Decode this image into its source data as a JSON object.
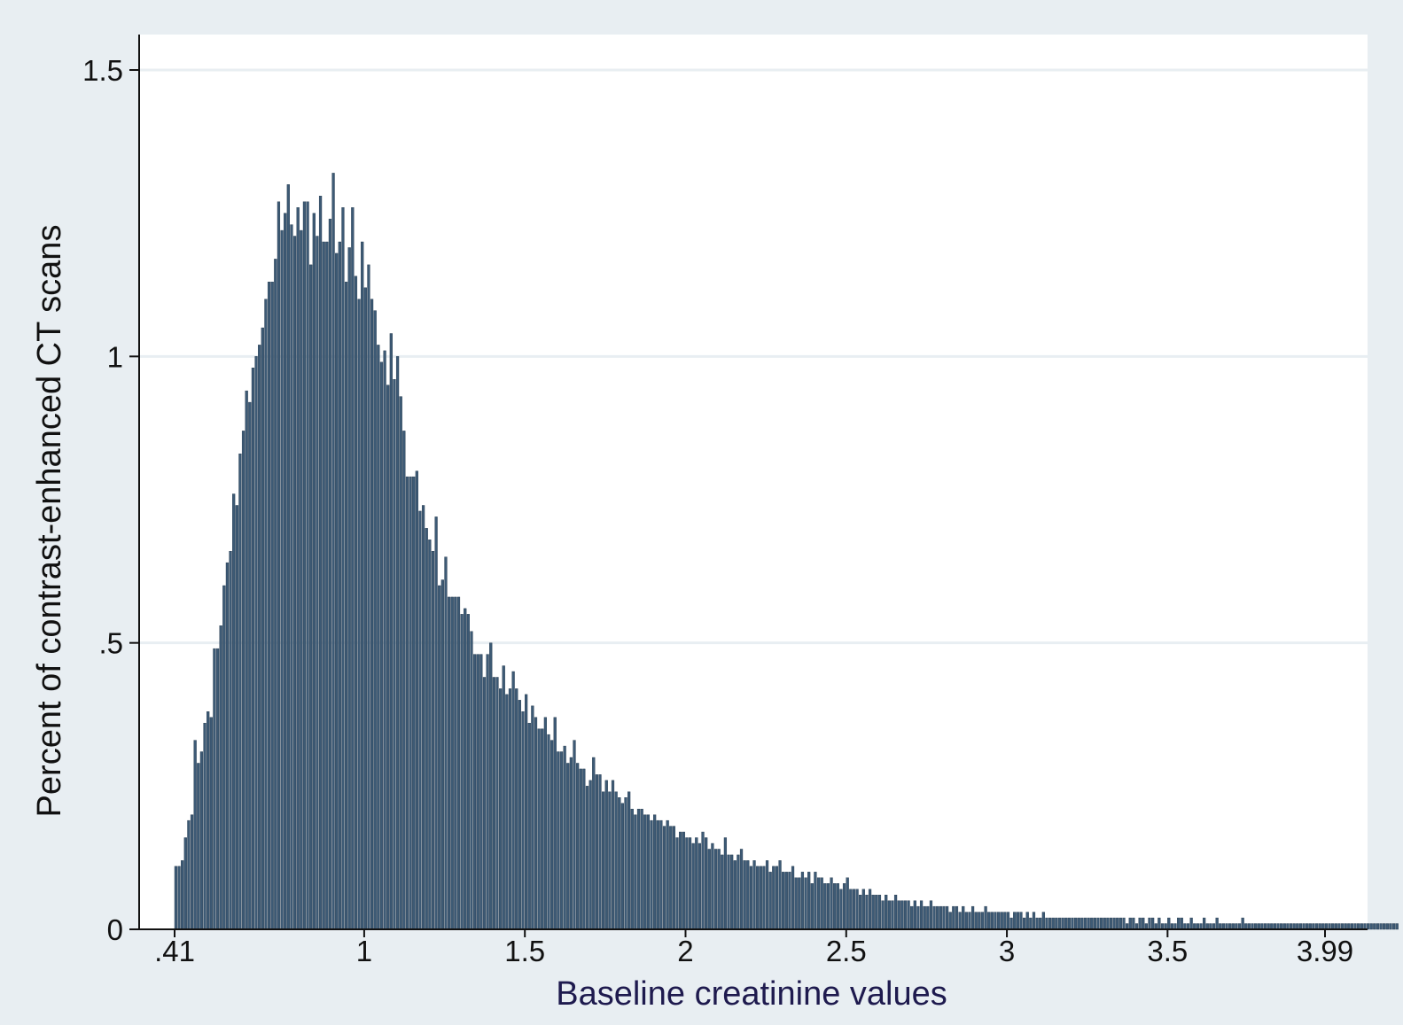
{
  "chart_data": {
    "type": "bar",
    "subtype": "histogram",
    "title": "",
    "xlabel": "Baseline creatinine values",
    "ylabel": "Percent of contrast-enhanced CT scans",
    "xlim": [
      0.41,
      3.99
    ],
    "ylim": [
      0,
      1.5
    ],
    "x_ticks": [
      {
        "value": 0.41,
        "label": ".41"
      },
      {
        "value": 1,
        "label": "1"
      },
      {
        "value": 1.5,
        "label": "1.5"
      },
      {
        "value": 2,
        "label": "2"
      },
      {
        "value": 2.5,
        "label": "2.5"
      },
      {
        "value": 3,
        "label": "3"
      },
      {
        "value": 3.5,
        "label": "3.5"
      },
      {
        "value": 3.99,
        "label": "3.99"
      }
    ],
    "y_ticks": [
      {
        "value": 0,
        "label": "0"
      },
      {
        "value": 0.5,
        "label": ".5"
      },
      {
        "value": 1,
        "label": "1"
      },
      {
        "value": 1.5,
        "label": "1.5"
      }
    ],
    "grid": true,
    "legend": "none",
    "bin_width": 0.01,
    "bins_start": 0.41,
    "values": [
      0.11,
      0.11,
      0.12,
      0.16,
      0.19,
      0.2,
      0.33,
      0.29,
      0.31,
      0.36,
      0.38,
      0.37,
      0.49,
      0.49,
      0.53,
      0.6,
      0.64,
      0.66,
      0.76,
      0.74,
      0.83,
      0.87,
      0.94,
      0.92,
      0.98,
      1.0,
      1.02,
      1.05,
      1.1,
      1.13,
      1.13,
      1.17,
      1.27,
      1.22,
      1.25,
      1.3,
      1.23,
      1.21,
      1.26,
      1.22,
      1.27,
      1.27,
      1.16,
      1.25,
      1.21,
      1.28,
      1.2,
      1.2,
      1.24,
      1.32,
      1.18,
      1.2,
      1.26,
      1.13,
      1.19,
      1.26,
      1.14,
      1.1,
      1.2,
      1.12,
      1.16,
      1.1,
      1.08,
      1.02,
      0.99,
      1.01,
      0.95,
      1.04,
      0.96,
      1.0,
      0.93,
      0.87,
      0.79,
      0.79,
      0.79,
      0.8,
      0.73,
      0.74,
      0.7,
      0.68,
      0.66,
      0.72,
      0.6,
      0.61,
      0.65,
      0.58,
      0.58,
      0.58,
      0.58,
      0.55,
      0.56,
      0.55,
      0.52,
      0.48,
      0.48,
      0.48,
      0.44,
      0.48,
      0.5,
      0.44,
      0.44,
      0.42,
      0.46,
      0.41,
      0.42,
      0.45,
      0.42,
      0.4,
      0.38,
      0.41,
      0.36,
      0.39,
      0.37,
      0.35,
      0.35,
      0.37,
      0.34,
      0.33,
      0.37,
      0.31,
      0.31,
      0.32,
      0.29,
      0.3,
      0.33,
      0.29,
      0.28,
      0.28,
      0.25,
      0.26,
      0.3,
      0.27,
      0.27,
      0.24,
      0.26,
      0.24,
      0.26,
      0.24,
      0.23,
      0.22,
      0.23,
      0.24,
      0.21,
      0.2,
      0.21,
      0.21,
      0.2,
      0.2,
      0.19,
      0.2,
      0.19,
      0.19,
      0.18,
      0.19,
      0.18,
      0.18,
      0.16,
      0.17,
      0.17,
      0.16,
      0.16,
      0.15,
      0.16,
      0.15,
      0.17,
      0.16,
      0.14,
      0.15,
      0.14,
      0.14,
      0.13,
      0.16,
      0.13,
      0.13,
      0.12,
      0.13,
      0.14,
      0.12,
      0.12,
      0.11,
      0.12,
      0.11,
      0.11,
      0.11,
      0.12,
      0.1,
      0.11,
      0.11,
      0.12,
      0.1,
      0.1,
      0.1,
      0.11,
      0.09,
      0.09,
      0.1,
      0.09,
      0.1,
      0.08,
      0.1,
      0.09,
      0.09,
      0.08,
      0.08,
      0.09,
      0.08,
      0.08,
      0.07,
      0.08,
      0.09,
      0.07,
      0.07,
      0.07,
      0.06,
      0.07,
      0.06,
      0.07,
      0.06,
      0.06,
      0.06,
      0.05,
      0.06,
      0.05,
      0.05,
      0.06,
      0.05,
      0.05,
      0.05,
      0.05,
      0.04,
      0.05,
      0.04,
      0.05,
      0.04,
      0.04,
      0.05,
      0.04,
      0.04,
      0.04,
      0.04,
      0.04,
      0.03,
      0.04,
      0.04,
      0.03,
      0.04,
      0.03,
      0.03,
      0.04,
      0.03,
      0.03,
      0.03,
      0.04,
      0.03,
      0.03,
      0.03,
      0.03,
      0.03,
      0.03,
      0.03,
      0.02,
      0.03,
      0.03,
      0.03,
      0.02,
      0.03,
      0.02,
      0.03,
      0.02,
      0.02,
      0.03,
      0.02,
      0.02,
      0.02,
      0.02,
      0.02,
      0.02,
      0.02,
      0.02,
      0.02,
      0.02,
      0.02,
      0.02,
      0.02,
      0.02,
      0.02,
      0.02,
      0.02,
      0.02,
      0.02,
      0.02,
      0.02,
      0.02,
      0.02,
      0.02,
      0.02,
      0.01,
      0.02,
      0.02,
      0.01,
      0.02,
      0.02,
      0.01,
      0.02,
      0.02,
      0.01,
      0.02,
      0.01,
      0.01,
      0.02,
      0.01,
      0.01,
      0.02,
      0.02,
      0.01,
      0.01,
      0.02,
      0.01,
      0.01,
      0.01,
      0.02,
      0.01,
      0.01,
      0.01,
      0.02,
      0.01,
      0.01,
      0.01,
      0.01,
      0.01,
      0.01,
      0.01,
      0.02,
      0.01,
      0.01,
      0.01,
      0.01,
      0.01,
      0.01,
      0.01,
      0.01,
      0.01,
      0.01,
      0.01,
      0.01,
      0.01,
      0.01,
      0.01,
      0.01,
      0.01,
      0.01,
      0.01,
      0.01,
      0.01,
      0.01,
      0.01,
      0.01,
      0.01,
      0.01,
      0.01,
      0.01,
      0.01,
      0.01,
      0.01,
      0.01,
      0.01,
      0.01,
      0.01,
      0.01,
      0.01,
      0.01,
      0.01,
      0.01,
      0.01,
      0.01,
      0.01,
      0.01,
      0.01,
      0.01,
      0.01,
      0.01
    ],
    "bar_color": "#3d5a75",
    "bar_edge_color": "#1f3448",
    "plot_background": "#ffffff",
    "outer_background": "#e8eef2",
    "gridline_color": "#e8eef2"
  }
}
